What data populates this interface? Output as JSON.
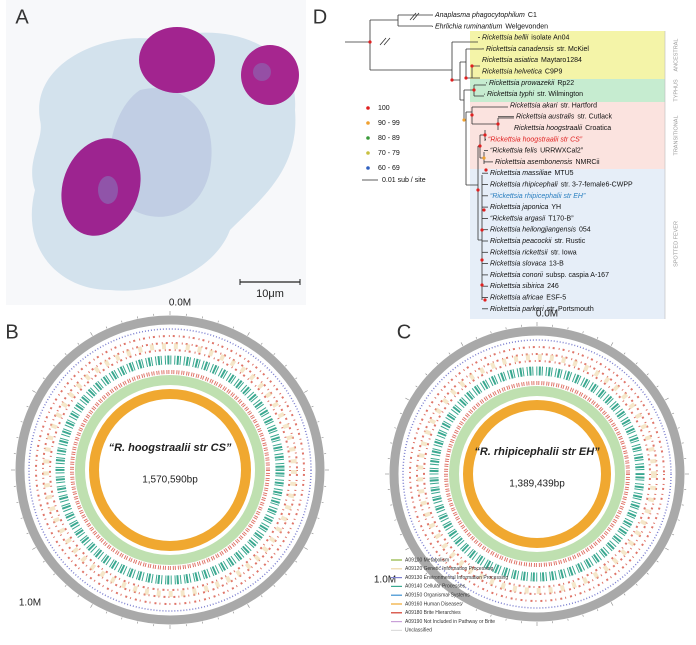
{
  "panel_a": {
    "label": "A",
    "scale_bar": "10μm"
  },
  "panel_b": {
    "label": "B",
    "title": "“R. hoogstraalii str CS”",
    "size": "1,570,590bp",
    "start_tick": "0.0M",
    "mid_tick": "1.0M"
  },
  "panel_c": {
    "label": "C",
    "title": "“R. rhipicephalii str EH”",
    "size": "1,389,439bp",
    "start_tick": "0.0M",
    "mid_tick": "1.0M"
  },
  "legend": [
    {
      "label": "A09100 Metabolism",
      "color": "#8db33c"
    },
    {
      "label": "A09120 Genetic Information Processing",
      "color": "#efd7a6"
    },
    {
      "label": "A09130 Environmental Information Processing",
      "color": "#7d80d0"
    },
    {
      "label": "A09140 Cellular Processes",
      "color": "#3aa890"
    },
    {
      "label": "A09150 Organismal Systems",
      "color": "#3b8fd0"
    },
    {
      "label": "A09160 Human Diseases",
      "color": "#f0a830"
    },
    {
      "label": "A09180 Brite Hierarchies",
      "color": "#d23a2a"
    },
    {
      "label": "A09190 Not Included in Pathway or Brite",
      "color": "#c9a0d8"
    },
    {
      "label": "Unclassified",
      "color": "#dddddd"
    }
  ],
  "panel_d": {
    "label": "D",
    "taxa": [
      {
        "species": "Anaplasma phagocytophilum",
        "strain": "C1"
      },
      {
        "species": "Ehrlichia ruminantium",
        "strain": "Welgevonden"
      },
      {
        "species": "Rickettsia bellii",
        "strain": "isolate An04"
      },
      {
        "species": "Rickettsia canadensis",
        "strain": "str. McKiel"
      },
      {
        "species": "Rickettsia asiatica",
        "strain": "Maytaro1284"
      },
      {
        "species": "Rickettsia helvetica",
        "strain": "C9P9"
      },
      {
        "species": "Rickettsia prowazekii",
        "strain": "Rp22"
      },
      {
        "species": "Rickettsia typhi",
        "strain": "str. Wilmington"
      },
      {
        "species": "Rickettsia akari",
        "strain": "str. Hartford"
      },
      {
        "species": "Rickettsia australis",
        "strain": "str. Cutlack"
      },
      {
        "species": "Rickettsia hoogstraalii",
        "strain": "Croatica"
      },
      {
        "species": "“Rickettsia hoogstraalii str CS”",
        "color": "#e02020"
      },
      {
        "species": "“Rickettsia felis",
        "strain": "URRWXCal2”"
      },
      {
        "species": "Rickettsia asembonensis",
        "strain": "NMRCii"
      },
      {
        "species": "Rickettsia massiliae",
        "strain": "MTU5"
      },
      {
        "species": "Rickettsia rhipicephali",
        "strain": "str. 3-7-female6-CWPP"
      },
      {
        "species": "“Rickettsia rhipicephalii str EH”",
        "color": "#2a7fc0"
      },
      {
        "species": "Rickettsia japonica",
        "strain": "YH"
      },
      {
        "species": "“Rickettsia argasii",
        "strain": "T170-B”"
      },
      {
        "species": "Rickettsia heilongjiangensis",
        "strain": "054"
      },
      {
        "species": "Rickettsia peacockii",
        "strain": "str. Rustic"
      },
      {
        "species": "Rickettsia rickettsii",
        "strain": "str. Iowa"
      },
      {
        "species": "Rickettsia slovaca",
        "strain": "13-B"
      },
      {
        "species": "Rickettsia conorii",
        "strain": "subsp. caspia A-167"
      },
      {
        "species": "Rickettsia sibirica",
        "strain": "246"
      },
      {
        "species": "Rickettsia africae",
        "strain": "ESF-5"
      },
      {
        "species": "Rickettsia parkeri",
        "strain": "str. Portsmouth"
      }
    ],
    "groups": [
      {
        "label": "ANCESTRAL",
        "color": "#f4f4a8"
      },
      {
        "label": "TYPHUS",
        "color": "#c6ecd0"
      },
      {
        "label": "TRANSITIONAL",
        "color": "#fbe3df"
      },
      {
        "label": "SPOTTED FEVER",
        "color": "#e6eef8"
      }
    ],
    "support_legend": [
      {
        "label": "100",
        "color": "#e02020"
      },
      {
        "label": "90 - 99",
        "color": "#f0a030"
      },
      {
        "label": "80 - 89",
        "color": "#3a9a3a"
      },
      {
        "label": "70 - 79",
        "color": "#c8c040"
      },
      {
        "label": "60 - 69",
        "color": "#3060c0"
      }
    ],
    "scale": "0.01 sub / site"
  }
}
